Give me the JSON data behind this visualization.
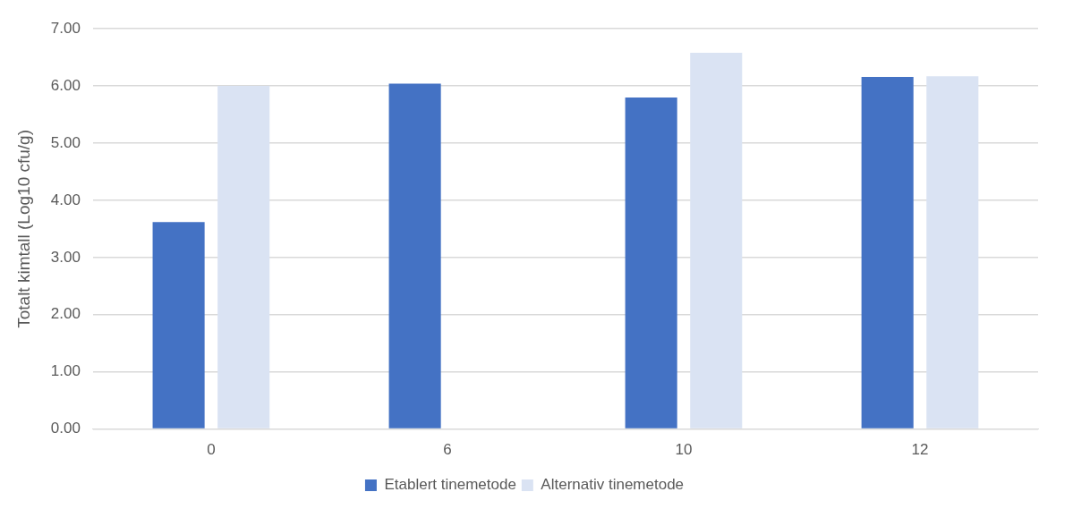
{
  "chart_data": {
    "type": "bar",
    "ylabel": "Totalt kimtall (Log10 cfu/g)",
    "categories": [
      "0",
      "6",
      "10",
      "12"
    ],
    "series": [
      {
        "name": "Etablert tinemetode",
        "color": "#4472c4",
        "values": [
          3.62,
          6.04,
          5.8,
          6.16
        ]
      },
      {
        "name": "Alternativ tinemetode",
        "color": "#dae3f3",
        "values": [
          6.0,
          null,
          6.58,
          6.17
        ]
      }
    ],
    "ylim": [
      0,
      7
    ],
    "yticks": [
      {
        "value": 0,
        "label": "0.00"
      },
      {
        "value": 1,
        "label": "1.00"
      },
      {
        "value": 2,
        "label": "2.00"
      },
      {
        "value": 3,
        "label": "3.00"
      },
      {
        "value": 4,
        "label": "4.00"
      },
      {
        "value": 5,
        "label": "5.00"
      },
      {
        "value": 6,
        "label": "6.00"
      },
      {
        "value": 7,
        "label": "7.00"
      }
    ],
    "grid": "y",
    "legend": "bottom"
  }
}
